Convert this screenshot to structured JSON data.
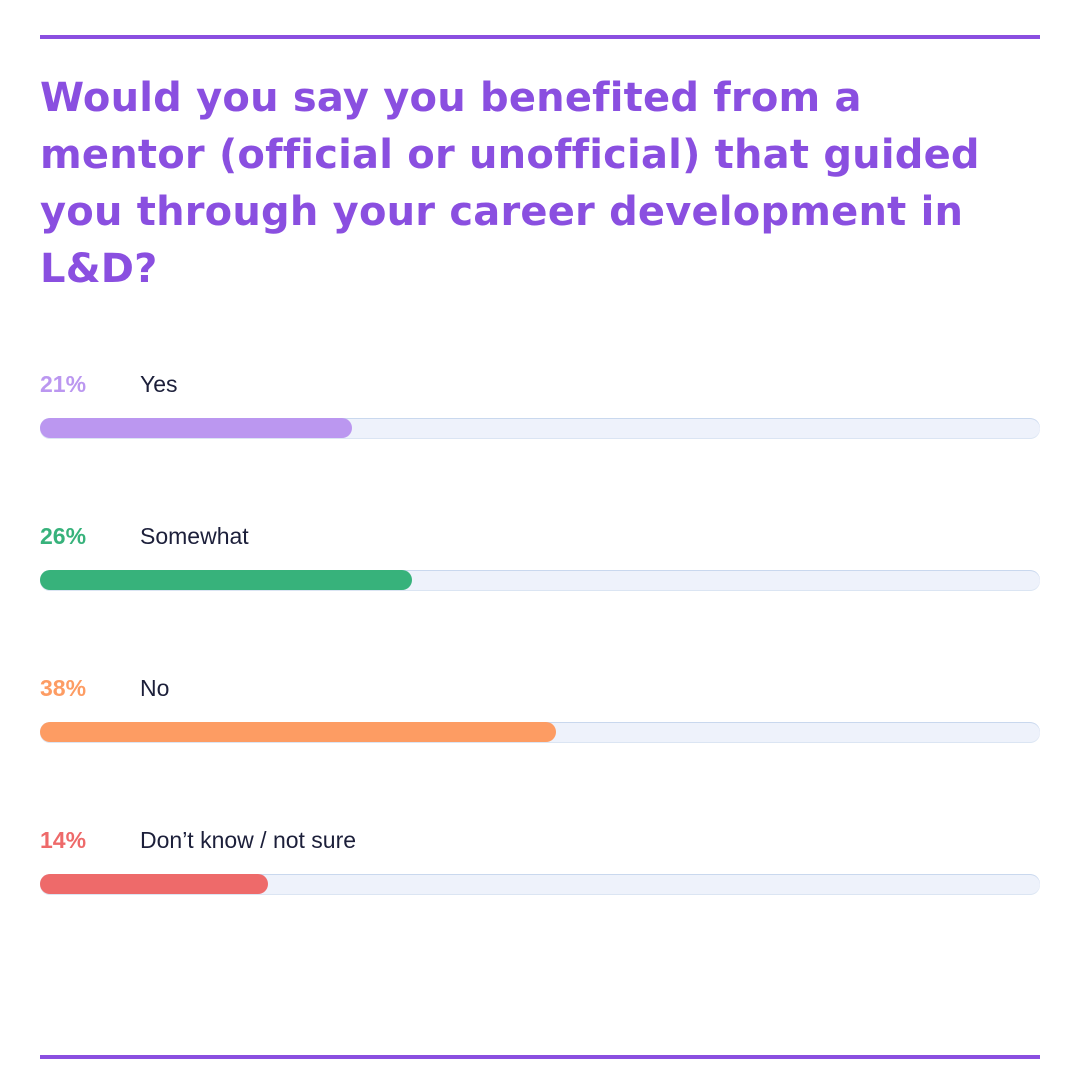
{
  "question": "Would you say you benefited from a mentor (official or unofficial) that guided you through your career development in L&D?",
  "colors": {
    "accent": "#8a4fe0"
  },
  "chart_data": {
    "type": "bar",
    "orientation": "horizontal",
    "title": "Would you say you benefited from a mentor (official or unofficial) that guided you through your career development in L&D?",
    "categories": [
      "Yes",
      "Somewhat",
      "No",
      "Don’t know / not sure"
    ],
    "values": [
      21,
      26,
      38,
      14
    ],
    "value_labels": [
      "21%",
      "26%",
      "38%",
      "14%"
    ],
    "colors": [
      "#bb97f0",
      "#37b27b",
      "#fd9c63",
      "#ee6a6a"
    ],
    "unit": "%",
    "xlim": [
      0,
      100
    ],
    "grid": false,
    "legend": "none"
  }
}
